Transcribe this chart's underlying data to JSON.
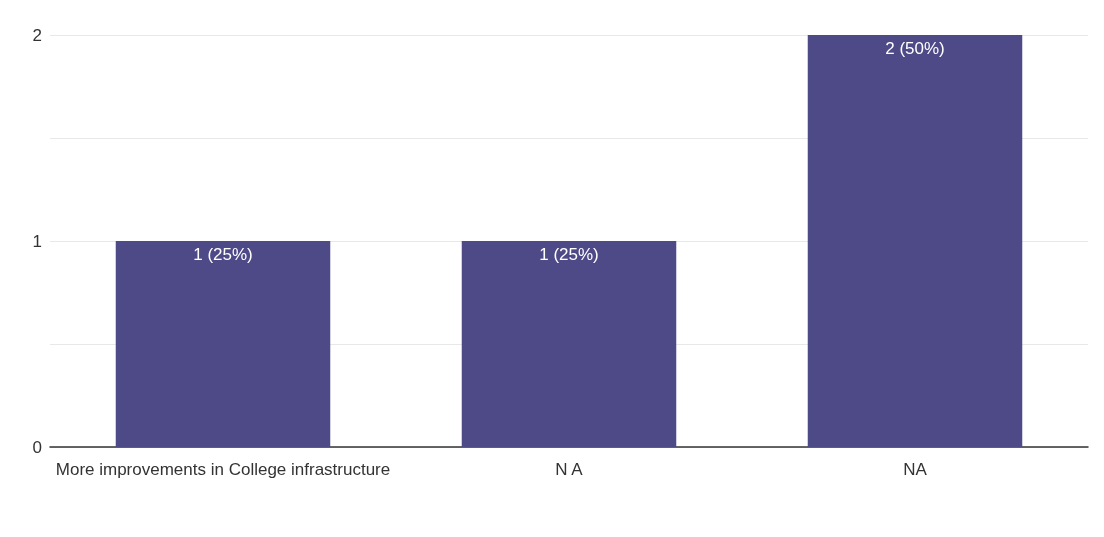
{
  "chart_data": {
    "type": "bar",
    "categories": [
      "More improvements in College infrastructure",
      "N A",
      "NA"
    ],
    "values": [
      1,
      1,
      2
    ],
    "color": "#4e4a87",
    "value_labels": [
      "1 (25%)",
      "1 (25%)",
      "2 (50%)"
    ],
    "ylim": [
      0,
      2
    ],
    "yticks": [
      0,
      {
        "value": 0.5,
        "label": null
      },
      1,
      {
        "value": 1.5,
        "label": null
      },
      2
    ],
    "grid": "y"
  }
}
